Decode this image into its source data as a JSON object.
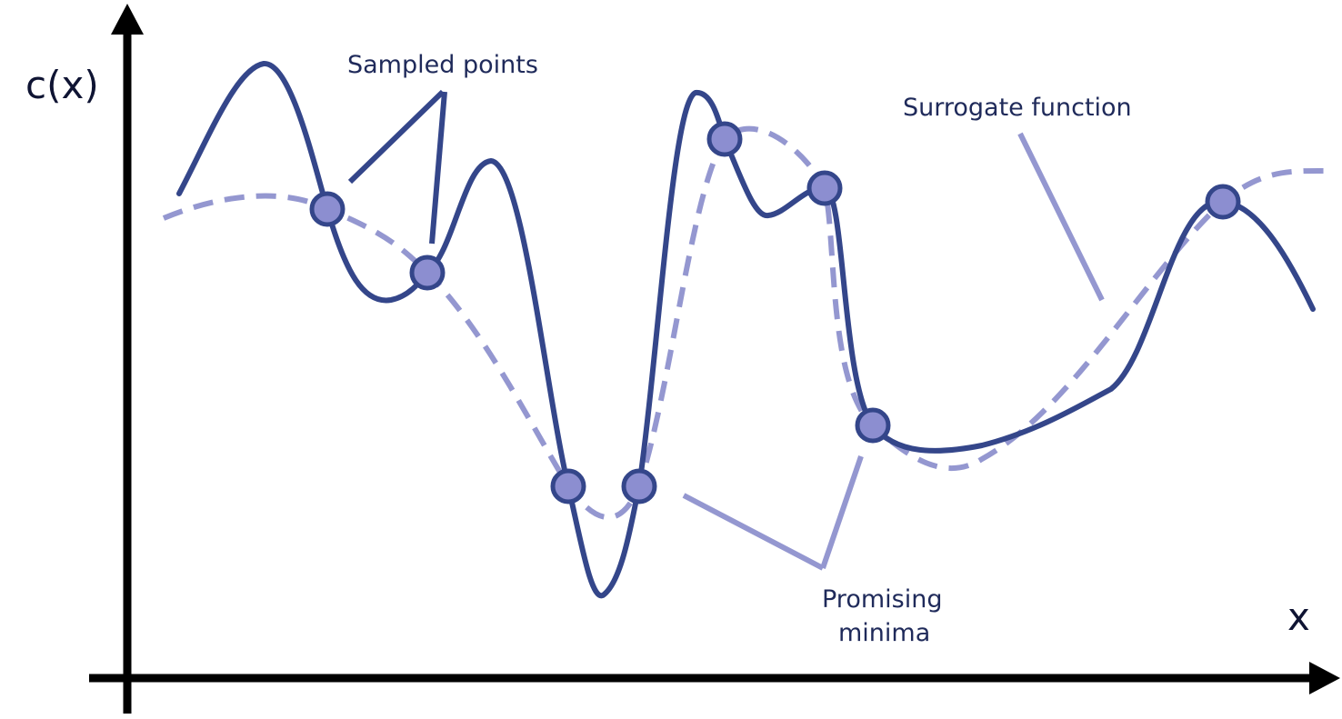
{
  "axes": {
    "y_label": "c(x)",
    "x_label": "x"
  },
  "annotations": {
    "sampled_points": "Sampled points",
    "surrogate_function": "Surrogate function",
    "promising_minima_line1": "Promising",
    "promising_minima_line2": "minima"
  },
  "colors": {
    "axis": "#000000",
    "true_function": "#34468a",
    "surrogate": "#9497d0",
    "point_fill": "#8c8ed0",
    "point_stroke": "#34468a",
    "leader_line": "#9497d0",
    "leader_line_dark": "#34468a"
  }
}
